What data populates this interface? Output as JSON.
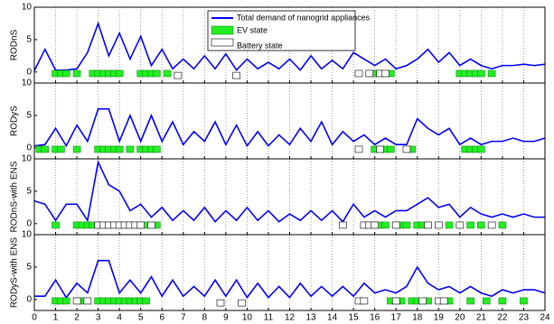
{
  "chart_data": [
    {
      "type": "line",
      "ylabel": "RODnS",
      "xlim": [
        0,
        24
      ],
      "ylim": [
        -1.7,
        10
      ],
      "yticks": [
        0,
        5,
        10
      ],
      "legend": "top",
      "x": [
        0,
        0.5,
        1,
        1.5,
        2,
        2.5,
        3,
        3.5,
        4,
        4.5,
        5,
        5.5,
        6,
        6.5,
        7,
        7.5,
        8,
        8.5,
        9,
        9.5,
        10,
        10.5,
        11,
        11.5,
        12,
        12.5,
        13,
        13.5,
        14,
        14.5,
        15,
        15.5,
        16,
        16.5,
        17,
        17.5,
        18,
        18.5,
        19,
        19.5,
        20,
        20.5,
        21,
        21.5,
        22,
        22.5,
        23,
        23.5,
        24
      ],
      "series": [
        {
          "name": "Total demand of nanogrid appliances",
          "color": "#0000ff",
          "values": [
            0.2,
            3.5,
            0.3,
            0.3,
            0.5,
            3,
            7.5,
            2.5,
            6,
            2,
            5.5,
            1,
            3.5,
            0.5,
            2,
            0.5,
            2.5,
            0.5,
            2.8,
            0.3,
            2,
            0.5,
            1.5,
            0.5,
            2,
            0.3,
            2.5,
            0.5,
            1.8,
            0.5,
            3,
            2,
            1,
            2,
            0.5,
            1,
            2,
            3.5,
            1.5,
            3,
            1,
            2,
            1,
            0.5,
            1,
            1,
            1.2,
            1,
            1.2
          ]
        },
        {
          "name": "EV state",
          "color": "#22ee22",
          "x": [
            1,
            1.25,
            1.5,
            2,
            2.75,
            3,
            3.25,
            3.5,
            3.75,
            4,
            5,
            5.25,
            5.5,
            5.75,
            6.25,
            16,
            16.75,
            20,
            20.25,
            20.5,
            20.75,
            21,
            21.5
          ],
          "values": [
            -0.3,
            -0.3,
            -0.3,
            -0.3,
            -0.3,
            -0.3,
            -0.3,
            -0.3,
            -0.3,
            -0.3,
            -0.3,
            -0.3,
            -0.3,
            -0.3,
            -0.3,
            -0.3,
            -0.3,
            -0.3,
            -0.3,
            -0.3,
            -0.3,
            -0.3,
            -0.3
          ]
        },
        {
          "name": "Battery state",
          "color": "#ffffff",
          "x": [
            6.75,
            9.5,
            15.25,
            15.75,
            16.25,
            16.5
          ],
          "values": [
            -0.6,
            -0.6,
            -0.3,
            -0.3,
            -0.3,
            -0.3
          ]
        }
      ]
    },
    {
      "type": "line",
      "ylabel": "RODyS",
      "xlim": [
        0,
        24
      ],
      "ylim": [
        -1.7,
        10
      ],
      "yticks": [
        0,
        5,
        10
      ],
      "x": [
        0,
        0.5,
        1,
        1.5,
        2,
        2.5,
        3,
        3.5,
        4,
        4.5,
        5,
        5.5,
        6,
        6.5,
        7,
        7.5,
        8,
        8.5,
        9,
        9.5,
        10,
        10.5,
        11,
        11.5,
        12,
        12.5,
        13,
        13.5,
        14,
        14.5,
        15,
        15.5,
        16,
        16.5,
        17,
        17.5,
        18,
        18.5,
        19,
        19.5,
        20,
        20.5,
        21,
        21.5,
        22,
        22.5,
        23,
        23.5,
        24
      ],
      "series": [
        {
          "color": "#0000ff",
          "values": [
            0.3,
            0.5,
            3,
            0.3,
            3.5,
            1,
            6,
            6,
            1,
            5,
            1,
            5,
            1,
            4,
            0.5,
            2.5,
            1,
            4,
            0.5,
            3.5,
            0.3,
            2.5,
            0.3,
            2,
            0.5,
            3,
            1,
            4,
            0.5,
            2.5,
            1,
            2,
            0.5,
            1.5,
            0.5,
            0.5,
            4.5,
            3,
            2,
            3,
            0.5,
            1.5,
            0.5,
            1,
            1,
            1.5,
            1,
            1,
            1.5
          ]
        },
        {
          "color": "#22ee22",
          "x": [
            0.25,
            0.5,
            1,
            1.25,
            2,
            3,
            3.25,
            3.5,
            3.75,
            4,
            4.5,
            5,
            5.25,
            5.5,
            5.75,
            16,
            16.5,
            16.75,
            17.75,
            20.25,
            20.5,
            20.75,
            21
          ],
          "values": [
            -0.3,
            -0.3,
            -0.3,
            -0.3,
            -0.3,
            -0.3,
            -0.3,
            -0.3,
            -0.3,
            -0.3,
            -0.3,
            -0.3,
            -0.3,
            -0.3,
            -0.3,
            -0.3,
            -0.3,
            -0.3,
            -0.3,
            -0.3,
            -0.3,
            -0.3,
            -0.3
          ]
        },
        {
          "color": "#ffffff",
          "x": [
            15.25,
            16.25,
            17.5
          ],
          "values": [
            -0.3,
            -0.3,
            -0.3
          ]
        }
      ]
    },
    {
      "type": "line",
      "ylabel": "RODnS-with ENS",
      "xlim": [
        0,
        24
      ],
      "ylim": [
        -1.7,
        10
      ],
      "yticks": [
        0,
        5,
        10
      ],
      "x": [
        0,
        0.5,
        1,
        1.5,
        2,
        2.5,
        3,
        3.5,
        4,
        4.5,
        5,
        5.5,
        6,
        6.5,
        7,
        7.5,
        8,
        8.5,
        9,
        9.5,
        10,
        10.5,
        11,
        11.5,
        12,
        12.5,
        13,
        13.5,
        14,
        14.5,
        15,
        15.5,
        16,
        16.5,
        17,
        17.5,
        18,
        18.5,
        19,
        19.5,
        20,
        20.5,
        21,
        21.5,
        22,
        22.5,
        23,
        23.5,
        24
      ],
      "series": [
        {
          "color": "#0000ff",
          "values": [
            3.5,
            3,
            0.5,
            3,
            3,
            0.5,
            9.5,
            6,
            5,
            2,
            3,
            1,
            2.5,
            0.5,
            2,
            0.5,
            2.5,
            0.3,
            2,
            0.5,
            2.5,
            0.5,
            2,
            0.3,
            1.5,
            0.5,
            2,
            0.5,
            2,
            0.3,
            3,
            1,
            2,
            1,
            2,
            2,
            3,
            4,
            2.5,
            3,
            1,
            2.5,
            1.5,
            1,
            1.5,
            1,
            1.5,
            1,
            1
          ]
        },
        {
          "color": "#22ee22",
          "x": [
            1,
            2,
            2.25,
            2.5,
            2.75,
            5.25,
            5.75,
            16.25,
            16.5,
            17.25,
            17.5,
            18,
            18.25,
            19.5,
            20.5,
            21,
            22
          ],
          "values": [
            -0.3,
            -0.3,
            -0.3,
            -0.3,
            -0.3,
            -0.3,
            -0.3,
            -0.3,
            -0.3,
            -0.3,
            -0.3,
            -0.3,
            -0.3,
            -0.3,
            -0.3,
            -0.3,
            -0.3
          ]
        },
        {
          "color": "#ffffff",
          "x": [
            3,
            3.25,
            3.5,
            3.75,
            4,
            4.25,
            4.5,
            4.75,
            5,
            5.5,
            14.5,
            15.5,
            15.75,
            16,
            17,
            18.5,
            19,
            20,
            21.5
          ],
          "values": [
            -0.3,
            -0.3,
            -0.3,
            -0.3,
            -0.3,
            -0.3,
            -0.3,
            -0.3,
            -0.3,
            -0.3,
            -0.3,
            -0.3,
            -0.3,
            -0.3,
            -0.3,
            -0.3,
            -0.3,
            -0.3,
            -0.3
          ]
        }
      ]
    },
    {
      "type": "line",
      "ylabel": "RODyS-with ENS",
      "xlim": [
        0,
        24
      ],
      "ylim": [
        -1.7,
        10
      ],
      "yticks": [
        0,
        5,
        10
      ],
      "xticks": [
        0,
        1,
        2,
        3,
        4,
        5,
        6,
        7,
        8,
        9,
        10,
        11,
        12,
        13,
        14,
        15,
        16,
        17,
        18,
        19,
        20,
        21,
        22,
        23,
        24
      ],
      "x": [
        0,
        0.5,
        1,
        1.5,
        2,
        2.5,
        3,
        3.5,
        4,
        4.5,
        5,
        5.5,
        6,
        6.5,
        7,
        7.5,
        8,
        8.5,
        9,
        9.5,
        10,
        10.5,
        11,
        11.5,
        12,
        12.5,
        13,
        13.5,
        14,
        14.5,
        15,
        15.5,
        16,
        16.5,
        17,
        17.5,
        18,
        18.5,
        19,
        19.5,
        20,
        20.5,
        21,
        21.5,
        22,
        22.5,
        23,
        23.5,
        24
      ],
      "series": [
        {
          "color": "#0000ff",
          "values": [
            0.5,
            0.5,
            3,
            0.3,
            2.5,
            1,
            6,
            6,
            1,
            3,
            1,
            3.5,
            0.5,
            3,
            0.5,
            2,
            0.5,
            3,
            0.5,
            3,
            0.3,
            2.5,
            0.3,
            2,
            0.3,
            2.5,
            0.5,
            2,
            0.5,
            2,
            0.5,
            2.5,
            1,
            1.5,
            1,
            2,
            5,
            2.5,
            1.5,
            2,
            1,
            2,
            1,
            0.5,
            1.5,
            1,
            1.5,
            1.5,
            1
          ]
        },
        {
          "color": "#22ee22",
          "x": [
            1,
            1.25,
            1.5,
            2.25,
            3,
            3.25,
            3.5,
            3.75,
            4,
            4.25,
            4.5,
            4.75,
            5,
            5.25,
            16.75,
            17.25,
            17.75,
            18,
            18.5,
            19.5,
            20.5,
            21.25,
            22,
            23
          ],
          "values": [
            -0.3,
            -0.3,
            -0.3,
            -0.3,
            -0.3,
            -0.3,
            -0.3,
            -0.3,
            -0.3,
            -0.3,
            -0.3,
            -0.3,
            -0.3,
            -0.3,
            -0.3,
            -0.3,
            -0.3,
            -0.3,
            -0.3,
            -0.3,
            -0.3,
            -0.3,
            -0.3,
            -0.3
          ]
        },
        {
          "color": "#ffffff",
          "x": [
            2,
            2.5,
            8.75,
            9.75,
            15.25,
            15.5,
            17,
            18.25,
            19,
            19.25
          ],
          "values": [
            -0.3,
            -0.3,
            -0.6,
            -0.6,
            -0.3,
            -0.3,
            -0.3,
            -0.3,
            -0.3,
            -0.3
          ]
        }
      ]
    }
  ]
}
